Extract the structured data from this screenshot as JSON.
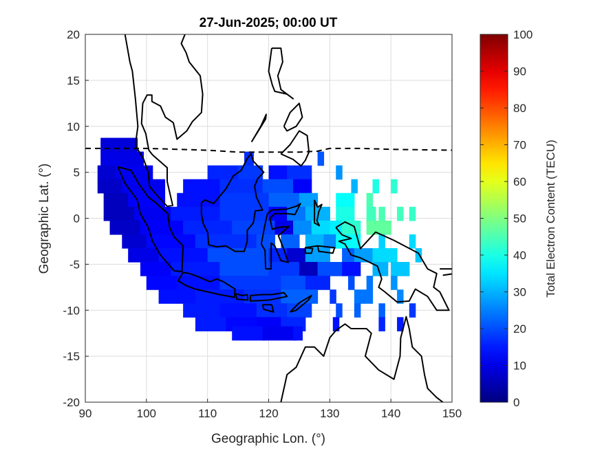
{
  "chart_data": {
    "type": "heatmap",
    "title": "27-Jun-2025; 00:00 UT",
    "xlabel": "Geographic Lon. (°)",
    "ylabel": "Geographic Lat. (°)",
    "xlim": [
      90,
      150
    ],
    "ylim": [
      -20,
      20
    ],
    "xticks": [
      "90",
      "100",
      "110",
      "120",
      "130",
      "140",
      "150"
    ],
    "yticks": [
      "20",
      "15",
      "10",
      "5",
      "0",
      "-5",
      "-10",
      "-15",
      "-20"
    ],
    "grid": true,
    "colormap": "jet",
    "colorbar": {
      "label": "Total Electron Content (TECU)",
      "range": [
        0,
        100
      ],
      "ticks": [
        "0",
        "10",
        "20",
        "30",
        "40",
        "50",
        "60",
        "70",
        "80",
        "90",
        "100"
      ]
    },
    "cell_size_deg": 1.5,
    "magnetic_equator": {
      "style": "dashed",
      "lon": [
        90,
        100,
        110,
        115,
        120,
        125,
        128,
        130,
        135,
        140,
        150
      ],
      "lat": [
        7.6,
        7.6,
        7.4,
        7.2,
        7.2,
        7.2,
        7.3,
        7.6,
        7.6,
        7.5,
        7.4
      ]
    },
    "tec_rows": [
      {
        "lat": 8.0,
        "segments": [
          [
            92.5,
            98.5,
            9
          ]
        ]
      },
      {
        "lat": 6.5,
        "segments": [
          [
            92.5,
            99,
            10
          ],
          [
            116,
            117.5,
            17
          ],
          [
            128,
            129,
            21
          ]
        ]
      },
      {
        "lat": 5.0,
        "segments": [
          [
            92,
            95,
            8
          ],
          [
            95,
            101,
            11
          ],
          [
            110,
            115,
            16
          ],
          [
            115,
            119,
            18
          ],
          [
            120,
            123,
            14
          ],
          [
            123,
            127,
            17
          ],
          [
            131,
            132,
            27
          ]
        ]
      },
      {
        "lat": 3.5,
        "segments": [
          [
            92,
            96,
            7
          ],
          [
            96,
            103,
            11
          ],
          [
            106,
            112,
            14
          ],
          [
            112,
            119,
            17
          ],
          [
            119,
            124,
            20
          ],
          [
            124,
            127,
            12
          ],
          [
            133.5,
            134.5,
            30
          ],
          [
            137,
            138,
            40
          ],
          [
            140,
            141,
            42
          ]
        ]
      },
      {
        "lat": 2.0,
        "segments": [
          [
            93,
            97,
            6
          ],
          [
            97,
            103,
            12
          ],
          [
            105,
            112,
            14
          ],
          [
            112,
            120,
            18
          ],
          [
            120,
            125,
            22
          ],
          [
            125,
            128,
            28
          ],
          [
            131,
            134,
            38
          ],
          [
            136,
            137,
            45
          ]
        ]
      },
      {
        "lat": 0.5,
        "segments": [
          [
            93,
            98,
            6
          ],
          [
            98,
            104,
            11
          ],
          [
            104,
            112,
            15
          ],
          [
            112,
            120,
            18
          ],
          [
            120,
            123,
            12
          ],
          [
            123,
            126,
            24
          ],
          [
            126,
            130,
            30
          ],
          [
            131,
            134,
            40
          ],
          [
            136,
            137.5,
            44
          ],
          [
            138,
            139,
            45
          ],
          [
            141,
            142,
            44
          ],
          [
            143,
            144,
            43
          ]
        ]
      },
      {
        "lat": -1.0,
        "segments": [
          [
            94,
            99,
            7
          ],
          [
            99,
            106,
            12
          ],
          [
            106,
            114,
            16
          ],
          [
            114,
            121,
            19
          ],
          [
            121,
            124,
            10
          ],
          [
            124,
            127,
            26
          ],
          [
            127,
            130,
            34
          ],
          [
            130,
            132,
            36
          ],
          [
            132,
            135,
            42
          ],
          [
            136,
            140,
            47
          ]
        ]
      },
      {
        "lat": -2.5,
        "segments": [
          [
            96,
            100,
            8
          ],
          [
            100,
            108,
            13
          ],
          [
            108,
            118,
            17
          ],
          [
            118,
            121,
            20
          ],
          [
            122,
            125,
            22
          ],
          [
            126,
            129,
            30
          ],
          [
            129,
            131,
            26
          ],
          [
            131,
            135,
            38
          ],
          [
            138,
            139,
            33
          ],
          [
            143,
            144,
            34
          ]
        ]
      },
      {
        "lat": -4.0,
        "segments": [
          [
            97,
            102,
            10
          ],
          [
            102,
            110,
            14
          ],
          [
            110,
            120,
            20
          ],
          [
            120,
            123,
            16
          ],
          [
            123,
            126,
            8
          ],
          [
            126,
            130,
            28
          ],
          [
            132,
            134,
            22
          ],
          [
            134,
            137,
            28
          ],
          [
            137,
            141,
            34
          ],
          [
            144,
            145,
            32
          ]
        ]
      },
      {
        "lat": -5.5,
        "segments": [
          [
            99,
            104,
            12
          ],
          [
            104,
            112,
            15
          ],
          [
            112,
            120,
            20
          ],
          [
            120,
            125,
            18
          ],
          [
            125,
            128,
            6
          ],
          [
            128,
            132,
            20
          ],
          [
            132,
            135,
            14
          ],
          [
            137,
            139,
            30
          ],
          [
            140,
            143,
            32
          ]
        ]
      },
      {
        "lat": -7.0,
        "segments": [
          [
            100,
            105,
            13
          ],
          [
            105,
            112,
            14
          ],
          [
            112,
            122,
            18
          ],
          [
            122,
            126,
            20
          ],
          [
            126,
            130,
            16
          ],
          [
            133,
            134,
            20
          ],
          [
            136,
            137,
            24
          ],
          [
            140,
            141,
            27
          ]
        ]
      },
      {
        "lat": -8.5,
        "segments": [
          [
            102,
            108,
            14
          ],
          [
            108,
            116,
            15
          ],
          [
            116,
            122,
            17
          ],
          [
            122,
            128,
            22
          ],
          [
            130,
            131,
            18
          ],
          [
            134,
            137,
            24
          ],
          [
            141,
            142,
            26
          ]
        ]
      },
      {
        "lat": -10.0,
        "segments": [
          [
            106,
            112,
            15
          ],
          [
            112,
            118,
            14
          ],
          [
            118,
            123,
            17
          ],
          [
            123,
            127,
            19
          ],
          [
            131,
            132,
            20
          ],
          [
            134,
            135,
            22
          ],
          [
            138,
            139,
            22
          ],
          [
            143,
            144,
            18
          ]
        ]
      },
      {
        "lat": -11.5,
        "segments": [
          [
            108,
            113,
            15
          ],
          [
            113,
            118,
            13
          ],
          [
            118,
            122,
            12
          ],
          [
            122,
            126,
            16
          ],
          [
            130.5,
            131.5,
            14
          ],
          [
            138,
            139,
            16
          ],
          [
            141,
            142,
            15
          ]
        ]
      },
      {
        "lat": -12.5,
        "segments": [
          [
            114,
            119,
            14
          ],
          [
            119,
            124,
            11
          ],
          [
            124,
            125.5,
            14
          ]
        ]
      }
    ]
  }
}
